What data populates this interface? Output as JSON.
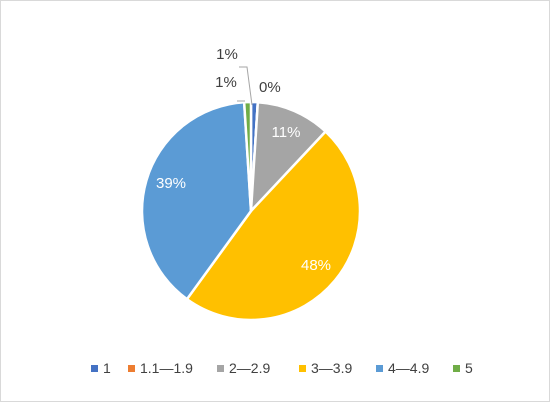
{
  "chart_data": {
    "type": "pie",
    "title": "",
    "slices": [
      {
        "label": "1",
        "value": 1,
        "display": "1%",
        "color": "#4472C4"
      },
      {
        "label": "1.1—1.9",
        "value": 0,
        "display": "0%",
        "color": "#ED7D31"
      },
      {
        "label": "2—2.9",
        "value": 11,
        "display": "11%",
        "color": "#A5A5A5"
      },
      {
        "label": "3—3.9",
        "value": 48,
        "display": "48%",
        "color": "#FFC000"
      },
      {
        "label": "4—4.9",
        "value": 39,
        "display": "39%",
        "color": "#5B9BD5"
      },
      {
        "label": "5",
        "value": 1,
        "display": "1%",
        "color": "#70AD47"
      }
    ],
    "legend_position": "bottom",
    "start_angle": "12 o'clock, clockwise",
    "leader_lines": true
  }
}
